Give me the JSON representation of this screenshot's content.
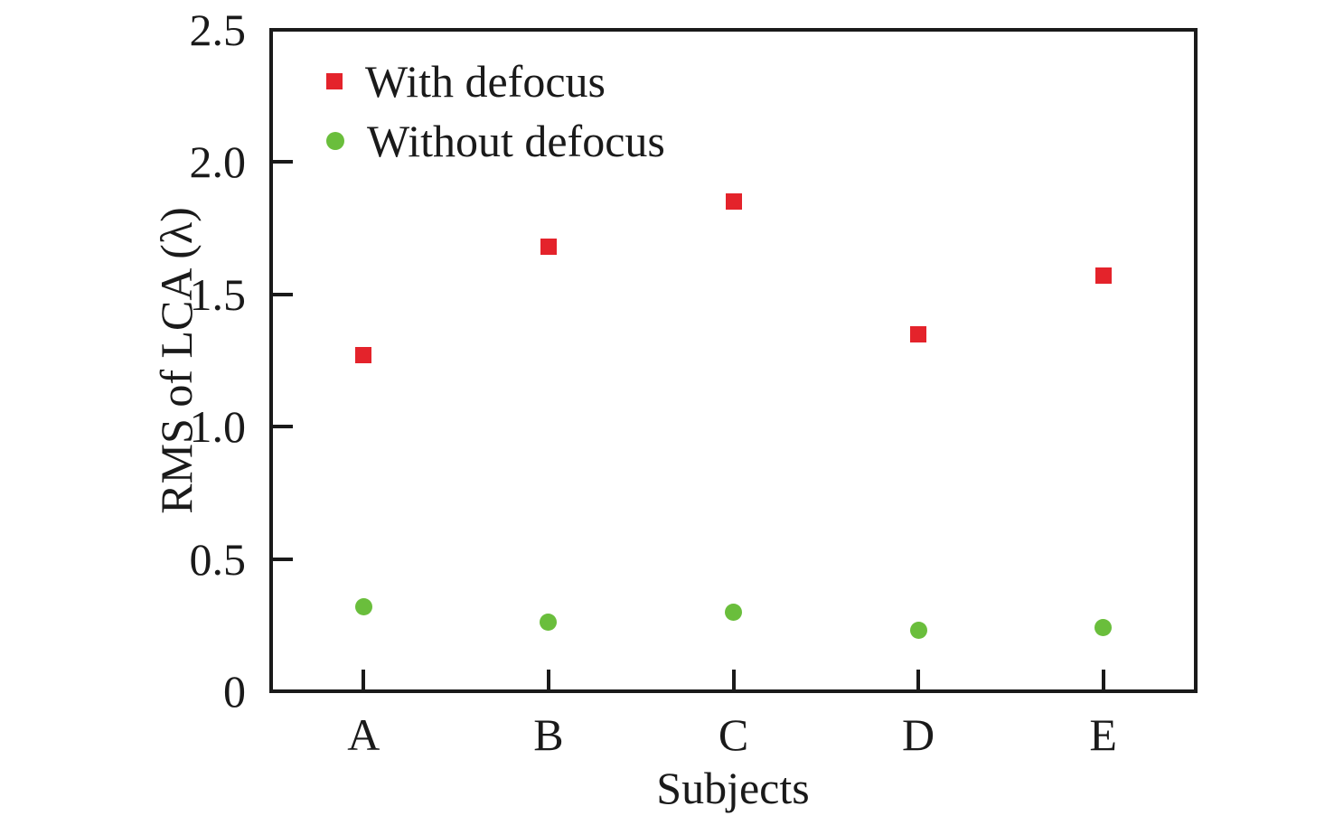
{
  "figure": {
    "background": "#ffffff",
    "text_color": "#1a1a1a",
    "axis_color": "#1a1a1a"
  },
  "chart_data": {
    "type": "scatter",
    "title": "",
    "xlabel": "Subjects",
    "ylabel": "RMS of LCA (λ)",
    "categories": [
      "A",
      "B",
      "C",
      "D",
      "E"
    ],
    "series": [
      {
        "name": "With defocus",
        "marker": "square",
        "color": "#e4232b",
        "values": [
          1.27,
          1.68,
          1.85,
          1.35,
          1.57
        ]
      },
      {
        "name": "Without defocus",
        "marker": "circle",
        "color": "#6abe3c",
        "values": [
          0.32,
          0.26,
          0.3,
          0.23,
          0.24
        ]
      }
    ],
    "ylim": [
      0,
      2.5
    ],
    "yticks": [
      0,
      0.5,
      1.0,
      1.5,
      2.0,
      2.5
    ],
    "ytick_labels": [
      "0",
      "0.5",
      "1.0",
      "1.5",
      "2.0",
      "2.5"
    ],
    "grid": false,
    "frame": "box",
    "tick_direction": "in",
    "legend_position": "upper-left"
  }
}
